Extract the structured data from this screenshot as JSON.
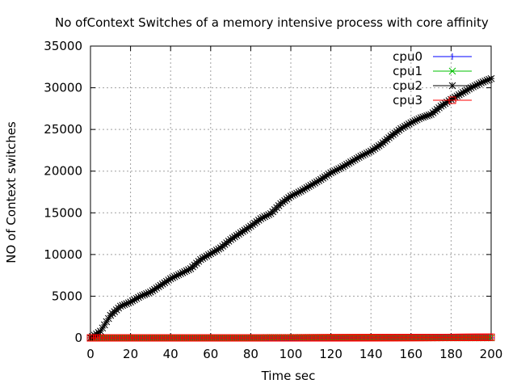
{
  "chart_data": {
    "type": "line",
    "title": "No ofContext Switches of a memory intensive process with core affinity",
    "xlabel": "Time sec",
    "ylabel": "NO of Context switches",
    "xlim": [
      0,
      200
    ],
    "ylim": [
      0,
      35000
    ],
    "xticks": [
      "0",
      "20",
      "40",
      "60",
      "80",
      "100",
      "120",
      "140",
      "160",
      "180",
      "200"
    ],
    "yticks": [
      "0",
      "5000",
      "10000",
      "15000",
      "20000",
      "25000",
      "30000",
      "35000"
    ],
    "grid": true,
    "legend_position": "top-right",
    "series": [
      {
        "name": "cpu0",
        "color": "#0000ff",
        "marker": "plus",
        "x": [
          0,
          50,
          100,
          150,
          200
        ],
        "values": [
          0,
          0,
          0,
          0,
          0
        ]
      },
      {
        "name": "cpu1",
        "color": "#00c000",
        "marker": "x",
        "x": [
          0,
          85,
          88,
          140,
          142,
          200
        ],
        "values": [
          0,
          0,
          50,
          50,
          0,
          0
        ]
      },
      {
        "name": "cpu2",
        "color": "#000000",
        "marker": "star",
        "x": [
          0,
          5,
          10,
          15,
          20,
          25,
          30,
          35,
          40,
          45,
          50,
          55,
          60,
          65,
          70,
          75,
          80,
          85,
          90,
          95,
          100,
          105,
          110,
          115,
          120,
          125,
          130,
          135,
          140,
          145,
          150,
          155,
          160,
          165,
          170,
          175,
          180,
          185,
          190,
          195,
          200
        ],
        "values": [
          0,
          800,
          2700,
          3800,
          4300,
          5000,
          5500,
          6300,
          7100,
          7700,
          8300,
          9400,
          10100,
          10800,
          11800,
          12600,
          13400,
          14300,
          14900,
          16100,
          17000,
          17600,
          18300,
          19000,
          19800,
          20400,
          21100,
          21800,
          22400,
          23200,
          24200,
          25100,
          25800,
          26400,
          26800,
          27800,
          28600,
          29300,
          30000,
          30600,
          31100
        ]
      },
      {
        "name": "cpu3",
        "color": "#ff0000",
        "marker": "box",
        "x": [
          0,
          100,
          180,
          200
        ],
        "values": [
          0,
          0,
          50,
          80
        ]
      }
    ]
  }
}
